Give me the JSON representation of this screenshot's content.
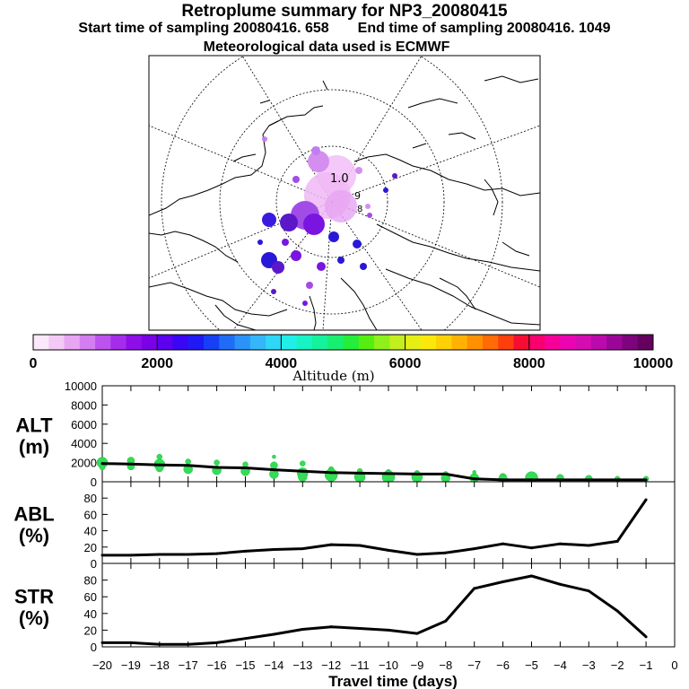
{
  "header": {
    "title": "Retroplume summary for NP3_20080415",
    "start_label": "Start time of sampling 20080416.   658",
    "end_label": "End time of sampling 20080416.  1049",
    "met_label": "Meteorological data used is ECMWF"
  },
  "map": {
    "contour_labels": [
      "1.0",
      "9",
      "8"
    ],
    "colors": {
      "land": "#000000",
      "grid": "#000000",
      "plume_light": "#f3c2f7",
      "plume_mid": "#c27ef0",
      "plume_dark": "#5a18c9",
      "plume_blue": "#2a18d8"
    }
  },
  "colorbar": {
    "tick_labels": [
      "0",
      "2000",
      "4000",
      "6000",
      "8000",
      "10000"
    ],
    "label": "Altitude (m)",
    "colors": [
      "#fbe8fb",
      "#f3c9f6",
      "#e7a5f2",
      "#d47df0",
      "#bd52ee",
      "#a52ceb",
      "#8e0eea",
      "#7a00e8",
      "#5c00f0",
      "#3b06f3",
      "#1f1af4",
      "#1740f5",
      "#1f6df7",
      "#2b92f8",
      "#34b6f8",
      "#2fd6f6",
      "#22eee8",
      "#18f3c4",
      "#14f29b",
      "#18ef70",
      "#24ed3b",
      "#55ee10",
      "#8ff01a",
      "#c3ef1e",
      "#e6ef14",
      "#fbe80a",
      "#fdd105",
      "#ffb202",
      "#ff9001",
      "#ff6b04",
      "#ff3e0e",
      "#f70d33",
      "#f8006e",
      "#f6009a",
      "#eb04b2",
      "#d50cb2",
      "#bb0aab",
      "#9c0698",
      "#7d047c",
      "#650060"
    ]
  },
  "chart_data": [
    {
      "type": "line",
      "name": "ALT",
      "ylabel_line1": "ALT",
      "ylabel_line2": "(m)",
      "ylim": [
        0,
        10000
      ],
      "yticks": [
        0,
        2000,
        4000,
        6000,
        8000,
        10000
      ],
      "x": [
        -20,
        -19,
        -18,
        -17,
        -16,
        -15,
        -14,
        -13,
        -12,
        -11,
        -10,
        -9,
        -8,
        -7,
        -6,
        -5,
        -4,
        -3,
        -2,
        -1
      ],
      "values": [
        1900,
        1850,
        1750,
        1700,
        1500,
        1450,
        1250,
        1100,
        950,
        900,
        850,
        800,
        800,
        300,
        200,
        200,
        200,
        200,
        200,
        200
      ],
      "scatter_color": "#33dd55",
      "scatter": [
        {
          "x": -20,
          "y": 2000,
          "r": 6
        },
        {
          "x": -20,
          "y": 1500,
          "r": 3
        },
        {
          "x": -19,
          "y": 2200,
          "r": 4
        },
        {
          "x": -19,
          "y": 1600,
          "r": 4
        },
        {
          "x": -18,
          "y": 2600,
          "r": 3
        },
        {
          "x": -18,
          "y": 1800,
          "r": 6
        },
        {
          "x": -18,
          "y": 1400,
          "r": 4
        },
        {
          "x": -17,
          "y": 2100,
          "r": 3
        },
        {
          "x": -17,
          "y": 1300,
          "r": 5
        },
        {
          "x": -16,
          "y": 2000,
          "r": 3
        },
        {
          "x": -16,
          "y": 1200,
          "r": 5
        },
        {
          "x": -15,
          "y": 1800,
          "r": 3
        },
        {
          "x": -15,
          "y": 1100,
          "r": 5
        },
        {
          "x": -14,
          "y": 2600,
          "r": 2
        },
        {
          "x": -14,
          "y": 1700,
          "r": 4
        },
        {
          "x": -14,
          "y": 800,
          "r": 5
        },
        {
          "x": -13,
          "y": 1900,
          "r": 3
        },
        {
          "x": -13,
          "y": 900,
          "r": 6
        },
        {
          "x": -13,
          "y": 500,
          "r": 5
        },
        {
          "x": -12,
          "y": 1300,
          "r": 3
        },
        {
          "x": -12,
          "y": 700,
          "r": 7
        },
        {
          "x": -11,
          "y": 1100,
          "r": 3
        },
        {
          "x": -11,
          "y": 500,
          "r": 6
        },
        {
          "x": -10,
          "y": 1000,
          "r": 3
        },
        {
          "x": -10,
          "y": 500,
          "r": 7
        },
        {
          "x": -9,
          "y": 900,
          "r": 3
        },
        {
          "x": -9,
          "y": 500,
          "r": 6
        },
        {
          "x": -8,
          "y": 800,
          "r": 3
        },
        {
          "x": -8,
          "y": 400,
          "r": 5
        },
        {
          "x": -7,
          "y": 1000,
          "r": 2
        },
        {
          "x": -7,
          "y": 400,
          "r": 5
        },
        {
          "x": -6,
          "y": 500,
          "r": 4
        },
        {
          "x": -6,
          "y": 250,
          "r": 5
        },
        {
          "x": -5,
          "y": 400,
          "r": 7
        },
        {
          "x": -4,
          "y": 400,
          "r": 4
        },
        {
          "x": -3,
          "y": 300,
          "r": 4
        },
        {
          "x": -2,
          "y": 300,
          "r": 3
        },
        {
          "x": -1,
          "y": 300,
          "r": 3
        }
      ]
    },
    {
      "type": "line",
      "name": "ABL",
      "ylabel_line1": "ABL",
      "ylabel_line2": "(%)",
      "ylim": [
        0,
        100
      ],
      "yticks": [
        0,
        20,
        40,
        60,
        80
      ],
      "x": [
        -20,
        -19,
        -18,
        -17,
        -16,
        -15,
        -14,
        -13,
        -12,
        -11,
        -10,
        -9,
        -8,
        -7,
        -6,
        -5,
        -4,
        -3,
        -2,
        -1
      ],
      "values": [
        10,
        10,
        11,
        11,
        12,
        15,
        17,
        18,
        23,
        22,
        16,
        11,
        13,
        18,
        24,
        19,
        24,
        22,
        27,
        78
      ]
    },
    {
      "type": "line",
      "name": "STR",
      "ylabel_line1": "STR",
      "ylabel_line2": "(%)",
      "ylim": [
        0,
        100
      ],
      "yticks": [
        0,
        20,
        40,
        60,
        80
      ],
      "x": [
        -20,
        -19,
        -18,
        -17,
        -16,
        -15,
        -14,
        -13,
        -12,
        -11,
        -10,
        -9,
        -8,
        -7,
        -6,
        -5,
        -4,
        -3,
        -2,
        -1
      ],
      "values": [
        5,
        5,
        3,
        3,
        5,
        10,
        15,
        21,
        24,
        22,
        20,
        16,
        31,
        70,
        78,
        85,
        75,
        67,
        43,
        12
      ]
    }
  ],
  "xaxis": {
    "tick_labels": [
      "−20",
      "−19",
      "−18",
      "−17",
      "−16",
      "−15",
      "−14",
      "−13",
      "−12",
      "−11",
      "−10",
      "−9",
      "−8",
      "−7",
      "−6",
      "−5",
      "−4",
      "−3",
      "−2",
      "−1",
      "0"
    ],
    "label": "Travel time (days)"
  }
}
